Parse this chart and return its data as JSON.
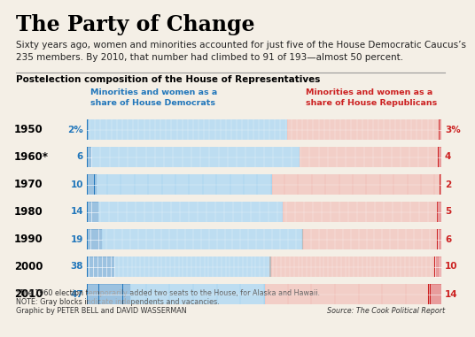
{
  "title": "The Party of Change",
  "subtitle": "Sixty years ago, women and minorities accounted for just five of the House Democratic Caucus’s\n235 members. By 2010, that number had climbed to 91 of 193—almost 50 percent.",
  "section_label": "Postelection composition of the House of Representatives",
  "left_legend": "Minorities and women as a\nshare of House Democrats",
  "right_legend": "Minorities and women as a\nshare of House Republicans",
  "years": [
    "1950",
    "1960*",
    "1970",
    "1980",
    "1990",
    "2000",
    "2010"
  ],
  "dem_minority": [
    2,
    6,
    10,
    14,
    19,
    38,
    47
  ],
  "dem_minority_labels": [
    "2%",
    "6",
    "10",
    "14",
    "19",
    "38",
    "47"
  ],
  "dem_other": [
    261,
    257,
    185,
    229,
    251,
    211,
    146
  ],
  "rep_other": [
    199,
    172,
    177,
    192,
    167,
    222,
    178
  ],
  "rep_minority": [
    3,
    4,
    2,
    5,
    6,
    10,
    14
  ],
  "rep_minority_labels": [
    "3%",
    "4",
    "2",
    "5",
    "6",
    "10",
    "14"
  ],
  "gray_dem": [
    0,
    0,
    0,
    0,
    1,
    2,
    0
  ],
  "gray_rep": [
    0,
    0,
    0,
    0,
    1,
    0,
    0
  ],
  "color_dem_dark": "#2277bb",
  "color_dem_light": "#aad4ee",
  "color_rep_dark": "#cc2222",
  "color_rep_light": "#f0c0b8",
  "color_gray": "#bbbbbb",
  "color_bg": "#f4efe6",
  "footnote1": "*The 1960 election temporarily added two seats to the House, for Alaska and Hawaii.",
  "footnote2": "NOTE: Gray blocks indicate independents and vacancies.",
  "footnote3": "Graphic by PETER BELL and DAVID WASSERMAN",
  "source": "Source: The Cook Political Report"
}
